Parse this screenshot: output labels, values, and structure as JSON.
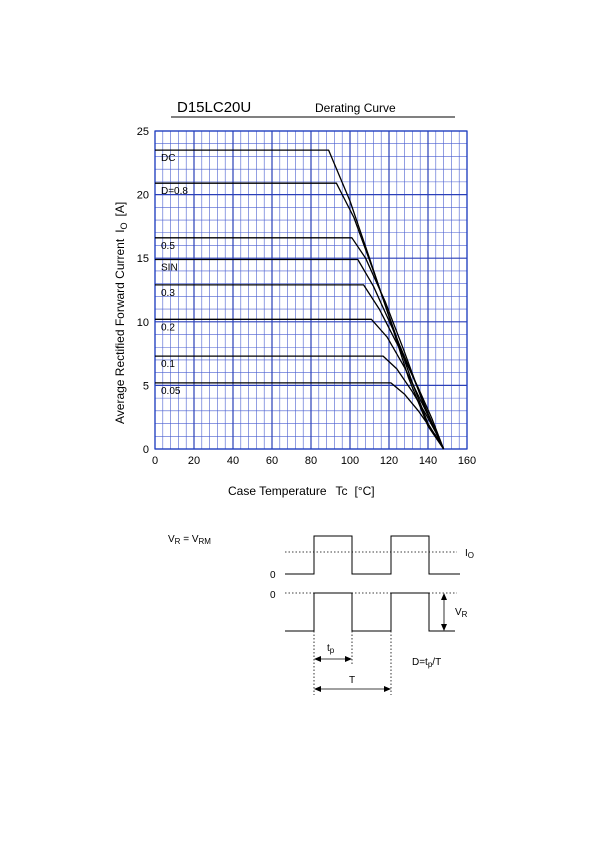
{
  "chart_data": {
    "type": "line",
    "title": "D15LC20U",
    "subtitle": "Derating Curve",
    "xlabel": "Case Temperature",
    "xlabel_symbol": "Tc",
    "xlabel_unit": "[°C]",
    "ylabel": "Average Rectified Forward Current",
    "ylabel_symbol": "I",
    "ylabel_symbol_sub": "O",
    "ylabel_unit": "[A]",
    "xlim": [
      0,
      160
    ],
    "ylim": [
      0,
      25
    ],
    "x_ticks": [
      "0",
      "20",
      "40",
      "60",
      "80",
      "100",
      "120",
      "140",
      "160"
    ],
    "y_ticks": [
      "0",
      "5",
      "10",
      "15",
      "20",
      "25"
    ],
    "grid": true,
    "series": [
      {
        "name": "DC",
        "points": [
          [
            0,
            23.5
          ],
          [
            89,
            23.5
          ],
          [
            100,
            19.5
          ],
          [
            110,
            15
          ],
          [
            120,
            10.4
          ],
          [
            130,
            5.6
          ],
          [
            140,
            1.8
          ],
          [
            148,
            0
          ]
        ]
      },
      {
        "name": "D=0.8",
        "points": [
          [
            0,
            20.9
          ],
          [
            93,
            20.9
          ],
          [
            102,
            18.2
          ],
          [
            112,
            14
          ],
          [
            122,
            9.6
          ],
          [
            132,
            5.2
          ],
          [
            140,
            2
          ],
          [
            148,
            0
          ]
        ]
      },
      {
        "name": "0.5",
        "points": [
          [
            0,
            16.6
          ],
          [
            101,
            16.6
          ],
          [
            108,
            15
          ],
          [
            118,
            11.6
          ],
          [
            128,
            7.6
          ],
          [
            138,
            3.4
          ],
          [
            148,
            0
          ]
        ]
      },
      {
        "name": "SIN",
        "points": [
          [
            0,
            14.9
          ],
          [
            104,
            14.9
          ],
          [
            112,
            12.8
          ],
          [
            122,
            9.4
          ],
          [
            132,
            5.8
          ],
          [
            140,
            2.8
          ],
          [
            148,
            0
          ]
        ]
      },
      {
        "name": "0.3",
        "points": [
          [
            0,
            12.9
          ],
          [
            107,
            12.9
          ],
          [
            115,
            11
          ],
          [
            125,
            8
          ],
          [
            135,
            4.8
          ],
          [
            142,
            2.4
          ],
          [
            148,
            0
          ]
        ]
      },
      {
        "name": "0.2",
        "points": [
          [
            0,
            10.2
          ],
          [
            111,
            10.2
          ],
          [
            119,
            8.8
          ],
          [
            128,
            6.4
          ],
          [
            136,
            3.9
          ],
          [
            143,
            1.7
          ],
          [
            148,
            0
          ]
        ]
      },
      {
        "name": "0.1",
        "points": [
          [
            0,
            7.3
          ],
          [
            117,
            7.3
          ],
          [
            124,
            6.3
          ],
          [
            132,
            4.5
          ],
          [
            139,
            2.7
          ],
          [
            144,
            1.3
          ],
          [
            148,
            0
          ]
        ]
      },
      {
        "name": "0.05",
        "points": [
          [
            0,
            5.2
          ],
          [
            121,
            5.2
          ],
          [
            128,
            4.3
          ],
          [
            135,
            3
          ],
          [
            141,
            1.7
          ],
          [
            145,
            0.8
          ],
          [
            148,
            0
          ]
        ]
      }
    ]
  },
  "waveform": {
    "vr_eq_vrm_left": "V",
    "vr_eq_vrm_left_sub": "R",
    "vr_eq_vrm_mid": " = V",
    "vr_eq_vrm_right_sub": "RM",
    "zero_label_1": "0",
    "zero_label_2": "0",
    "io_label": "I",
    "io_sub": "O",
    "vr_label": "V",
    "vr_sub": "R",
    "tp_label": "t",
    "tp_sub": "p",
    "t_label": "T",
    "duty_formula_a": "D=t",
    "duty_formula_sub": "p",
    "duty_formula_b": "/T"
  }
}
